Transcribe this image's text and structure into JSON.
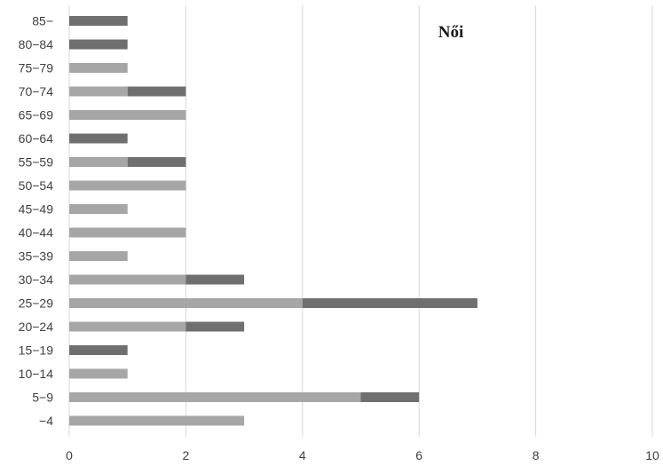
{
  "chart_data": {
    "type": "bar",
    "orientation": "horizontal",
    "stacked": true,
    "title": "Női",
    "xlabel": "",
    "ylabel": "",
    "xlim": [
      0,
      10
    ],
    "x_ticks": [
      0,
      2,
      4,
      6,
      8,
      10
    ],
    "grid": "vertical",
    "categories": [
      "−4",
      "5−9",
      "10−14",
      "15−19",
      "20−24",
      "25−29",
      "30−34",
      "35−39",
      "40−44",
      "45−49",
      "50−54",
      "55−59",
      "60−64",
      "65−69",
      "70−74",
      "75−79",
      "80−84",
      "85−"
    ],
    "series": [
      {
        "color": "#a6a6a6",
        "values": [
          3,
          5,
          1,
          0,
          2,
          4,
          2,
          1,
          2,
          1,
          2,
          1,
          0,
          2,
          1,
          1,
          0,
          0
        ]
      },
      {
        "color": "#6f6f6f",
        "values": [
          0,
          1,
          0,
          1,
          1,
          3,
          1,
          0,
          0,
          0,
          0,
          1,
          1,
          0,
          1,
          0,
          1,
          1
        ]
      }
    ]
  }
}
